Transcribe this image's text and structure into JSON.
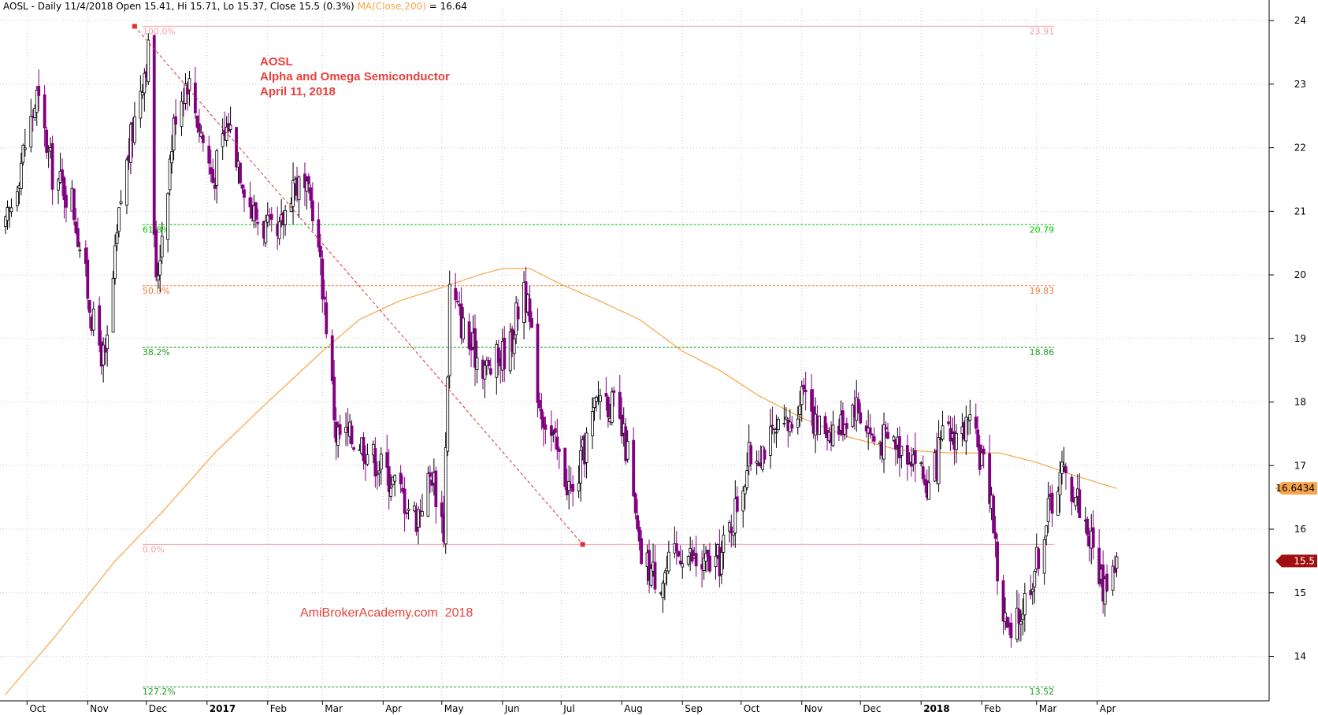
{
  "header": {
    "ticker_line": "AOSL - Daily 11/4/2018 Open 15.41, Hi 15.71, Lo 15.37, Close 15.5 (0.3%)",
    "ma_label": "MA(Close,200)",
    "ma_value": " = 16.64"
  },
  "annotation": {
    "line1": "AOSL",
    "line2": "Alpha and Omega Semiconductor",
    "line3": "April 11, 2018"
  },
  "watermark": "AmiBrokerAcademy.com  2018",
  "colors": {
    "up_candle": "#000000",
    "down_candle": "#800080",
    "ma_line": "#f7a54a",
    "fib_0_100": "#f4a0b0",
    "fib_green": "#00cc00",
    "fib_green_dark": "#1f9e1f",
    "fib_orange": "#f07a3c",
    "trend_line": "#e03030",
    "annotation": "#e8413b",
    "ma_price_tag": "#f7a54a",
    "close_price_tag": "#a01010"
  },
  "chart_data": {
    "type": "candlestick",
    "y_axis": {
      "ticks": [
        14,
        15,
        16,
        17,
        18,
        19,
        20,
        21,
        22,
        23,
        24
      ],
      "range": [
        13.3,
        24.2
      ],
      "side": "right"
    },
    "x_axis": {
      "ticks": [
        {
          "label": "Oct",
          "date": "2016-10",
          "bold": false
        },
        {
          "label": "Nov",
          "date": "2016-11",
          "bold": false
        },
        {
          "label": "Dec",
          "date": "2016-12",
          "bold": false
        },
        {
          "label": "2017",
          "date": "2017-01",
          "bold": true
        },
        {
          "label": "Feb",
          "date": "2017-02",
          "bold": false
        },
        {
          "label": "Mar",
          "date": "2017-03",
          "bold": false
        },
        {
          "label": "Apr",
          "date": "2017-04",
          "bold": false
        },
        {
          "label": "May",
          "date": "2017-05",
          "bold": false
        },
        {
          "label": "Jun",
          "date": "2017-06",
          "bold": false
        },
        {
          "label": "Jul",
          "date": "2017-07",
          "bold": false
        },
        {
          "label": "Aug",
          "date": "2017-08",
          "bold": false
        },
        {
          "label": "Sep",
          "date": "2017-09",
          "bold": false
        },
        {
          "label": "Oct",
          "date": "2017-10",
          "bold": false
        },
        {
          "label": "Nov",
          "date": "2017-11",
          "bold": false
        },
        {
          "label": "Dec",
          "date": "2017-12",
          "bold": false
        },
        {
          "label": "2018",
          "date": "2018-01",
          "bold": true
        },
        {
          "label": "Feb",
          "date": "2018-02",
          "bold": false
        },
        {
          "label": "Mar",
          "date": "2018-03",
          "bold": false
        },
        {
          "label": "Apr",
          "date": "2018-04",
          "bold": false
        }
      ]
    },
    "price_path": [
      {
        "date": "2016-09-20",
        "price": 20.7
      },
      {
        "date": "2016-09-28",
        "price": 21.8
      },
      {
        "date": "2016-10-06",
        "price": 22.8
      },
      {
        "date": "2016-10-14",
        "price": 21.6
      },
      {
        "date": "2016-10-24",
        "price": 21.2
      },
      {
        "date": "2016-11-04",
        "price": 19.2
      },
      {
        "date": "2016-11-10",
        "price": 18.6
      },
      {
        "date": "2016-11-18",
        "price": 21.2
      },
      {
        "date": "2016-11-28",
        "price": 23.0
      },
      {
        "date": "2016-12-02",
        "price": 23.5
      },
      {
        "date": "2016-12-06",
        "price": 19.8
      },
      {
        "date": "2016-12-10",
        "price": 21.0
      },
      {
        "date": "2016-12-16",
        "price": 22.6
      },
      {
        "date": "2016-12-22",
        "price": 23.1
      },
      {
        "date": "2017-01-04",
        "price": 21.5
      },
      {
        "date": "2017-01-12",
        "price": 22.4
      },
      {
        "date": "2017-01-24",
        "price": 21.0
      },
      {
        "date": "2017-02-06",
        "price": 20.5
      },
      {
        "date": "2017-02-14",
        "price": 21.5
      },
      {
        "date": "2017-02-24",
        "price": 21.1
      },
      {
        "date": "2017-03-02",
        "price": 19.6
      },
      {
        "date": "2017-03-08",
        "price": 17.5
      },
      {
        "date": "2017-03-20",
        "price": 17.4
      },
      {
        "date": "2017-04-05",
        "price": 16.8
      },
      {
        "date": "2017-04-18",
        "price": 16.2
      },
      {
        "date": "2017-04-26",
        "price": 16.9
      },
      {
        "date": "2017-05-02",
        "price": 16.0
      },
      {
        "date": "2017-05-05",
        "price": 19.8
      },
      {
        "date": "2017-05-15",
        "price": 18.9
      },
      {
        "date": "2017-05-25",
        "price": 18.5
      },
      {
        "date": "2017-06-05",
        "price": 18.9
      },
      {
        "date": "2017-06-12",
        "price": 19.9
      },
      {
        "date": "2017-06-20",
        "price": 18.0
      },
      {
        "date": "2017-06-30",
        "price": 17.1
      },
      {
        "date": "2017-07-07",
        "price": 16.5
      },
      {
        "date": "2017-07-14",
        "price": 17.4
      },
      {
        "date": "2017-07-21",
        "price": 18.2
      },
      {
        "date": "2017-07-28",
        "price": 17.9
      },
      {
        "date": "2017-08-04",
        "price": 17.2
      },
      {
        "date": "2017-08-10",
        "price": 15.6
      },
      {
        "date": "2017-08-20",
        "price": 15.2
      },
      {
        "date": "2017-09-01",
        "price": 15.7
      },
      {
        "date": "2017-09-10",
        "price": 15.4
      },
      {
        "date": "2017-09-20",
        "price": 15.5
      },
      {
        "date": "2017-09-28",
        "price": 16.3
      },
      {
        "date": "2017-10-05",
        "price": 17.1
      },
      {
        "date": "2017-10-16",
        "price": 17.4
      },
      {
        "date": "2017-10-26",
        "price": 17.6
      },
      {
        "date": "2017-11-03",
        "price": 18.4
      },
      {
        "date": "2017-11-08",
        "price": 17.6
      },
      {
        "date": "2017-11-20",
        "price": 17.6
      },
      {
        "date": "2017-11-28",
        "price": 18.0
      },
      {
        "date": "2017-12-08",
        "price": 17.4
      },
      {
        "date": "2017-12-18",
        "price": 17.4
      },
      {
        "date": "2017-12-28",
        "price": 17.2
      },
      {
        "date": "2018-01-05",
        "price": 16.6
      },
      {
        "date": "2018-01-12",
        "price": 17.4
      },
      {
        "date": "2018-01-25",
        "price": 17.6
      },
      {
        "date": "2018-02-01",
        "price": 17.1
      },
      {
        "date": "2018-02-06",
        "price": 16.5
      },
      {
        "date": "2018-02-10",
        "price": 14.9
      },
      {
        "date": "2018-02-16",
        "price": 14.2
      },
      {
        "date": "2018-02-22",
        "price": 14.8
      },
      {
        "date": "2018-03-01",
        "price": 15.5
      },
      {
        "date": "2018-03-08",
        "price": 16.4
      },
      {
        "date": "2018-03-14",
        "price": 16.9
      },
      {
        "date": "2018-03-22",
        "price": 16.5
      },
      {
        "date": "2018-03-29",
        "price": 15.8
      },
      {
        "date": "2018-04-04",
        "price": 15.1
      },
      {
        "date": "2018-04-11",
        "price": 15.5
      }
    ],
    "moving_average": {
      "name": "MA(Close,200)",
      "points": [
        {
          "date": "2016-09-20",
          "value": 13.4
        },
        {
          "date": "2016-10-15",
          "value": 14.3
        },
        {
          "date": "2016-11-15",
          "value": 15.5
        },
        {
          "date": "2016-12-10",
          "value": 16.3
        },
        {
          "date": "2017-01-05",
          "value": 17.2
        },
        {
          "date": "2017-02-01",
          "value": 18.0
        },
        {
          "date": "2017-03-01",
          "value": 18.8
        },
        {
          "date": "2017-03-20",
          "value": 19.3
        },
        {
          "date": "2017-04-10",
          "value": 19.6
        },
        {
          "date": "2017-05-01",
          "value": 19.8
        },
        {
          "date": "2017-05-20",
          "value": 20.0
        },
        {
          "date": "2017-06-01",
          "value": 20.1
        },
        {
          "date": "2017-06-15",
          "value": 20.1
        },
        {
          "date": "2017-07-01",
          "value": 19.85
        },
        {
          "date": "2017-07-20",
          "value": 19.6
        },
        {
          "date": "2017-08-10",
          "value": 19.3
        },
        {
          "date": "2017-09-01",
          "value": 18.8
        },
        {
          "date": "2017-09-20",
          "value": 18.5
        },
        {
          "date": "2017-10-10",
          "value": 18.1
        },
        {
          "date": "2017-11-01",
          "value": 17.75
        },
        {
          "date": "2017-11-25",
          "value": 17.45
        },
        {
          "date": "2017-12-20",
          "value": 17.25
        },
        {
          "date": "2018-01-15",
          "value": 17.2
        },
        {
          "date": "2018-02-10",
          "value": 17.2
        },
        {
          "date": "2018-03-01",
          "value": 17.05
        },
        {
          "date": "2018-03-20",
          "value": 16.85
        },
        {
          "date": "2018-04-11",
          "value": 16.64
        }
      ]
    },
    "fibonacci": {
      "anchor_high": {
        "date": "2016-11-25",
        "price": 23.91
      },
      "anchor_low": {
        "date": "2017-07-12",
        "price": 15.76
      },
      "end_date": "2018-03-10",
      "levels": [
        {
          "label": "100.0%",
          "value": "23.91",
          "price": 23.91,
          "color": "#f4a0b0",
          "style": "solid"
        },
        {
          "label": "61.8%",
          "value": "20.79",
          "price": 20.79,
          "color": "#00cc00",
          "style": "dashed"
        },
        {
          "label": "50.0%",
          "value": "19.83",
          "price": 19.83,
          "color": "#f07a3c",
          "style": "dashed"
        },
        {
          "label": "38.2%",
          "value": "18.86",
          "price": 18.86,
          "color": "#1f9e1f",
          "style": "dashed"
        },
        {
          "label": "0.0%",
          "value": "",
          "price": 15.76,
          "color": "#f4a0b0",
          "style": "solid"
        },
        {
          "label": "127.2%",
          "value": "13.52",
          "price": 13.52,
          "color": "#1f9e1f",
          "style": "dashed"
        }
      ]
    },
    "price_tags": [
      {
        "value": "16.6434",
        "price": 16.6434,
        "color": "#f7a54a",
        "text_color": "#000000"
      },
      {
        "value": "15.5",
        "price": 15.5,
        "color": "#a01010",
        "text_color": "#ffffff"
      }
    ]
  }
}
